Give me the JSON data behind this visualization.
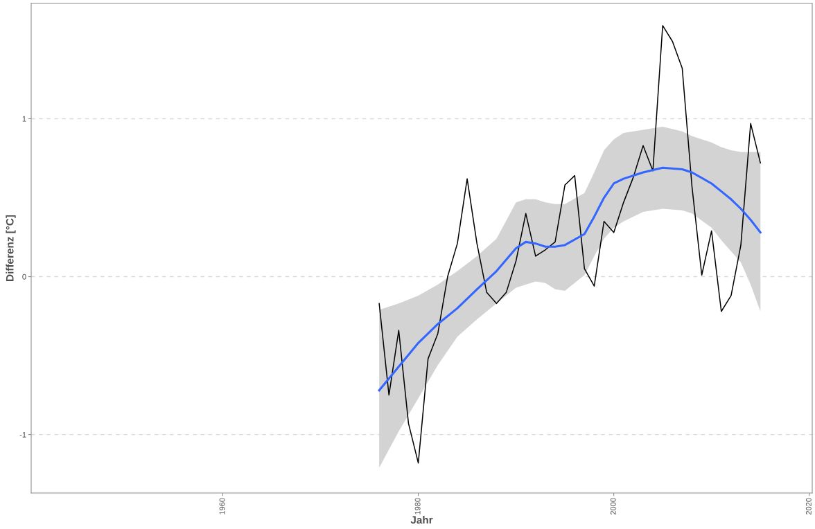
{
  "chart_data": {
    "type": "line",
    "xlabel": "Jahr",
    "ylabel": "Differenz [°C]",
    "xlim": [
      1940.4,
      2020.3
    ],
    "ylim": [
      -1.37,
      1.73
    ],
    "xticks": [
      1960,
      1980,
      2000,
      2020
    ],
    "yticks": [
      {
        "value": -1,
        "label": "-1"
      },
      0,
      1
    ],
    "grid": "y",
    "legend": false,
    "series": [
      {
        "color": "#000000",
        "x": [
          1976,
          1977,
          1978,
          1979,
          1980,
          1981,
          1982,
          1983,
          1984,
          1985,
          1986,
          1987,
          1988,
          1989,
          1990,
          1991,
          1992,
          1993,
          1994,
          1995,
          1996,
          1997,
          1998,
          1999,
          2000,
          2001,
          2002,
          2003,
          2004,
          2005,
          2006,
          2007,
          2008,
          2009,
          2010,
          2011,
          2012,
          2013,
          2014,
          2015
        ],
        "values": [
          -0.17,
          -0.75,
          -0.34,
          -0.93,
          -1.18,
          -0.52,
          -0.36,
          0.0,
          0.21,
          0.62,
          0.21,
          -0.1,
          -0.17,
          -0.1,
          0.1,
          0.4,
          0.13,
          0.17,
          0.22,
          0.58,
          0.64,
          0.05,
          -0.06,
          0.35,
          0.28,
          0.47,
          0.63,
          0.83,
          0.67,
          1.59,
          1.49,
          1.32,
          0.57,
          0.01,
          0.29,
          -0.22,
          -0.12,
          0.2,
          0.97,
          0.72
        ]
      },
      {
        "color": "#3366ff",
        "x": [
          1976,
          1978,
          1980,
          1982,
          1984,
          1986,
          1988,
          1990,
          1991,
          1992,
          1993,
          1994,
          1995,
          1997,
          1998,
          1999,
          2000,
          2001,
          2003,
          2005,
          2007,
          2008,
          2010,
          2011,
          2012,
          2013,
          2014,
          2015
        ],
        "values": [
          -0.72,
          -0.57,
          -0.42,
          -0.3,
          -0.2,
          -0.08,
          0.035,
          0.18,
          0.22,
          0.21,
          0.19,
          0.19,
          0.2,
          0.27,
          0.38,
          0.5,
          0.59,
          0.62,
          0.66,
          0.69,
          0.68,
          0.66,
          0.59,
          0.54,
          0.49,
          0.43,
          0.36,
          0.28
        ],
        "upper": [
          -0.21,
          -0.17,
          -0.12,
          -0.05,
          0.035,
          0.13,
          0.24,
          0.47,
          0.49,
          0.49,
          0.47,
          0.46,
          0.46,
          0.53,
          0.66,
          0.8,
          0.87,
          0.91,
          0.93,
          0.95,
          0.92,
          0.89,
          0.85,
          0.82,
          0.8,
          0.79,
          0.79,
          0.79
        ],
        "lower": [
          -1.21,
          -0.98,
          -0.77,
          -0.56,
          -0.38,
          -0.27,
          -0.17,
          -0.07,
          -0.05,
          -0.03,
          -0.04,
          -0.08,
          -0.09,
          0.01,
          0.13,
          0.24,
          0.31,
          0.35,
          0.41,
          0.43,
          0.42,
          0.4,
          0.31,
          0.23,
          0.16,
          0.09,
          -0.05,
          -0.22
        ]
      }
    ]
  }
}
